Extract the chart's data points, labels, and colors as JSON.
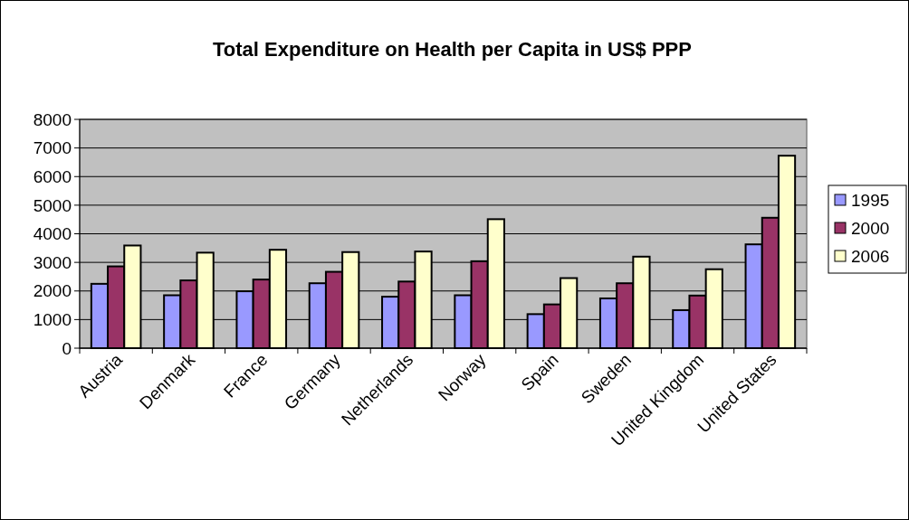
{
  "chart_data": {
    "type": "bar",
    "title": "Total Expenditure on Health per Capita in US$ PPP",
    "categories": [
      "Austria",
      "Denmark",
      "France",
      "Germany",
      "Netherlands",
      "Norway",
      "Spain",
      "Sweden",
      "United Kingdom",
      "United States"
    ],
    "series": [
      {
        "name": "1995",
        "color": "#9999ff",
        "values": [
          2250,
          1850,
          1990,
          2270,
          1800,
          1850,
          1190,
          1740,
          1330,
          3630
        ]
      },
      {
        "name": "2000",
        "color": "#993366",
        "values": [
          2860,
          2370,
          2400,
          2670,
          2330,
          3040,
          1530,
          2270,
          1840,
          4560
        ]
      },
      {
        "name": "2006",
        "color": "#ffffcc",
        "values": [
          3590,
          3340,
          3440,
          3360,
          3380,
          4510,
          2450,
          3200,
          2760,
          6730
        ]
      }
    ],
    "ylim": [
      0,
      8000
    ],
    "yticks": [
      0,
      1000,
      2000,
      3000,
      4000,
      5000,
      6000,
      7000,
      8000
    ],
    "grid": "y",
    "legend": "right"
  }
}
